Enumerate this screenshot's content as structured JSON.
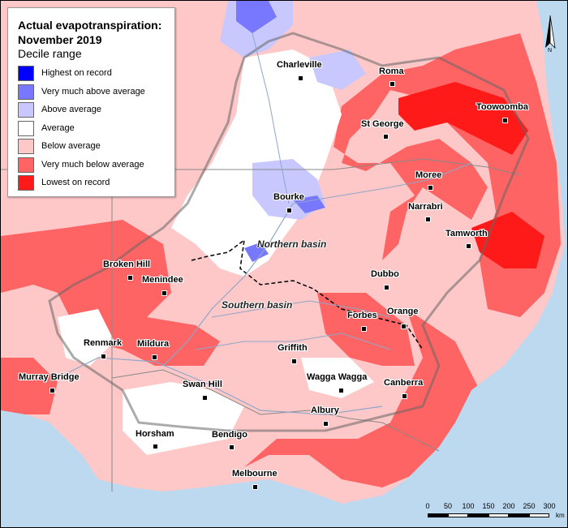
{
  "legend": {
    "title_line1": "Actual evapotranspiration:",
    "title_line2": "November 2019",
    "subtitle": "Decile range",
    "items": [
      {
        "label": "Highest on record",
        "color": "#0000ff"
      },
      {
        "label": "Very much above average",
        "color": "#7878ff"
      },
      {
        "label": "Above average",
        "color": "#c8c8ff"
      },
      {
        "label": "Average",
        "color": "#ffffff"
      },
      {
        "label": "Below average",
        "color": "#ffc8c8"
      },
      {
        "label": "Very much below average",
        "color": "#ff6464"
      },
      {
        "label": "Lowest on record",
        "color": "#ff1a1a"
      }
    ]
  },
  "towns": {
    "charleville": "Charleville",
    "roma": "Roma",
    "toowoomba": "Toowoomba",
    "st_george": "St George",
    "moree": "Moree",
    "bourke": "Bourke",
    "narrabri": "Narrabri",
    "tamworth": "Tamworth",
    "broken_hill": "Broken Hill",
    "menindee": "Menindee",
    "dubbo": "Dubbo",
    "orange": "Orange",
    "forbes": "Forbes",
    "renmark": "Renmark",
    "mildura": "Mildura",
    "griffith": "Griffith",
    "wagga_wagga": "Wagga Wagga",
    "murray_bridge": "Murray Bridge",
    "swan_hill": "Swan Hill",
    "canberra": "Canberra",
    "albury": "Albury",
    "horsham": "Horsham",
    "bendigo": "Bendigo",
    "melbourne": "Melbourne"
  },
  "basins": {
    "northern": "Northern basin",
    "southern": "Southern basin"
  },
  "scale": {
    "ticks": [
      "0",
      "50",
      "100",
      "150",
      "200",
      "250",
      "300"
    ],
    "unit": "km"
  },
  "north_label": "N",
  "colors": {
    "ocean": "#bcd9f0",
    "outside_basin": "#ffc8c8",
    "lowest": "#ff1a1a",
    "very_much_below": "#ff6464",
    "below": "#ffc8c8",
    "average": "#ffffff",
    "above": "#c8c8ff",
    "very_much_above": "#7878ff"
  }
}
